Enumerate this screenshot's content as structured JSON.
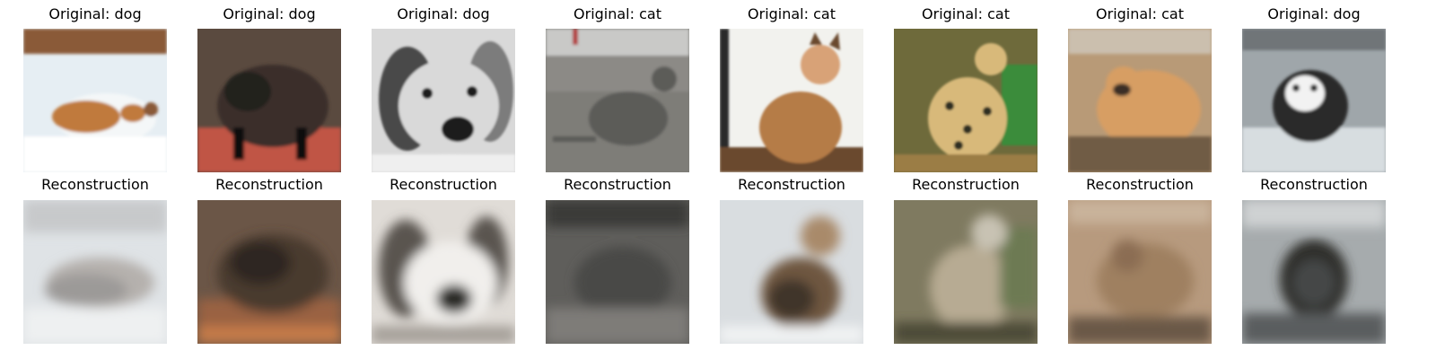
{
  "top_row": [
    {
      "title": "Original: dog",
      "icon": "dog-in-snow-photo",
      "colors": [
        "#e6eef3",
        "#f4f7f8",
        "#c07a3c",
        "#8a5a38",
        "#ffffff"
      ]
    },
    {
      "title": "Original: dog",
      "icon": "black-dog-on-red-floor-photo",
      "colors": [
        "#3a2f2a",
        "#24201d",
        "#c05444",
        "#5a4a3f",
        "#111111"
      ]
    },
    {
      "title": "Original: dog",
      "icon": "grayscale-beagle-photo",
      "colors": [
        "#d9d9d9",
        "#7c7c7c",
        "#4a4a4a",
        "#1c1c1c",
        "#efefef"
      ]
    },
    {
      "title": "Original: cat",
      "icon": "gray-cat-on-pavement-photo",
      "colors": [
        "#7e7d78",
        "#8c8a86",
        "#5c5b58",
        "#c9c9c7",
        "#b33d3d"
      ]
    },
    {
      "title": "Original: cat",
      "icon": "orange-tabby-cat-photo",
      "colors": [
        "#f2f2ee",
        "#b57b46",
        "#6a4a2d",
        "#2b2b2b",
        "#d8a277"
      ]
    },
    {
      "title": "Original: cat",
      "icon": "spotted-wildcat-photo",
      "colors": [
        "#6e6a3b",
        "#d8b97a",
        "#2d2f22",
        "#3b8c3b",
        "#9b7d45"
      ]
    },
    {
      "title": "Original: cat",
      "icon": "snarling-cougar-photo",
      "colors": [
        "#b89a77",
        "#d79e63",
        "#6f5b44",
        "#3b2e26",
        "#cbbfae"
      ]
    },
    {
      "title": "Original: dog",
      "icon": "husky-in-water-photo",
      "colors": [
        "#9fa6aa",
        "#d7dde0",
        "#2a2a2a",
        "#f2f2f2",
        "#6f7478"
      ]
    }
  ],
  "bottom_row": [
    {
      "title": "Reconstruction",
      "icon": "blurry-reconstruction-dog-snow",
      "colors": [
        "#dfe3e6",
        "#c7c9cb",
        "#b5b1ad",
        "#eef0f1",
        "#9c9a98"
      ]
    },
    {
      "title": "Reconstruction",
      "icon": "blurry-reconstruction-black-dog",
      "colors": [
        "#4a3a2e",
        "#2f2520",
        "#9a6242",
        "#6b5647",
        "#c47a4a"
      ]
    },
    {
      "title": "Reconstruction",
      "icon": "blurry-reconstruction-beagle",
      "colors": [
        "#e0dcd7",
        "#5a5550",
        "#2c2a28",
        "#a7a29b",
        "#f1efec"
      ]
    },
    {
      "title": "Reconstruction",
      "icon": "blurry-reconstruction-gray-cat",
      "colors": [
        "#5f5e5b",
        "#4a4946",
        "#706e6a",
        "#3b3a38",
        "#7e7c78"
      ]
    },
    {
      "title": "Reconstruction",
      "icon": "blurry-reconstruction-tabby-cat",
      "colors": [
        "#d9dde0",
        "#6e573f",
        "#403429",
        "#a98a6a",
        "#f0f2f3"
      ]
    },
    {
      "title": "Reconstruction",
      "icon": "blurry-reconstruction-wildcat",
      "colors": [
        "#7f7a60",
        "#b7ab93",
        "#4d4b38",
        "#c8c2b3",
        "#6d7a52"
      ]
    },
    {
      "title": "Reconstruction",
      "icon": "blurry-reconstruction-cougar",
      "colors": [
        "#b79a7e",
        "#9f8061",
        "#8b6d53",
        "#c9b39b",
        "#6b5847"
      ]
    },
    {
      "title": "Reconstruction",
      "icon": "blurry-reconstruction-husky",
      "colors": [
        "#a6abad",
        "#2d2d2b",
        "#5a5d5f",
        "#cfd2d3",
        "#444646"
      ]
    }
  ]
}
